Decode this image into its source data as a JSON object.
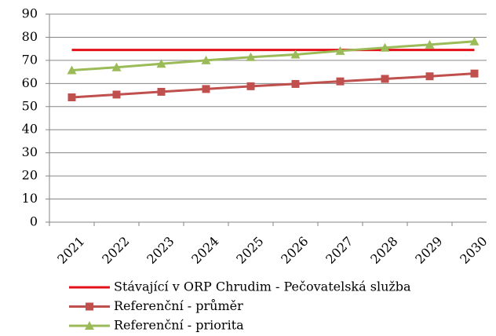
{
  "chart_data": {
    "type": "line",
    "categories": [
      "2021",
      "2022",
      "2023",
      "2024",
      "2025",
      "2026",
      "2027",
      "2028",
      "2029",
      "2030"
    ],
    "series": [
      {
        "name": "Stávající v ORP Chrudim - Pečovatelská služba",
        "color": "#e3101a",
        "marker": "none",
        "values": [
          74.5,
          74.5,
          74.5,
          74.5,
          74.5,
          74.5,
          74.5,
          74.5,
          74.5,
          74.5
        ]
      },
      {
        "name": "Referenční - průměr",
        "color": "#c0504d",
        "marker": "square",
        "values": [
          54,
          55.2,
          56.4,
          57.6,
          58.8,
          59.8,
          60.9,
          62,
          63.1,
          64.3
        ]
      },
      {
        "name": "Referenční - priorita",
        "color": "#9bbb59",
        "marker": "triangle",
        "values": [
          65.7,
          67,
          68.5,
          70,
          71.4,
          72.5,
          74.1,
          75.5,
          76.8,
          78.2
        ]
      }
    ],
    "ylim": [
      0,
      90
    ],
    "yticks": [
      0,
      10,
      20,
      30,
      40,
      50,
      60,
      70,
      80,
      90
    ],
    "grid": true,
    "legend": "bottom"
  }
}
